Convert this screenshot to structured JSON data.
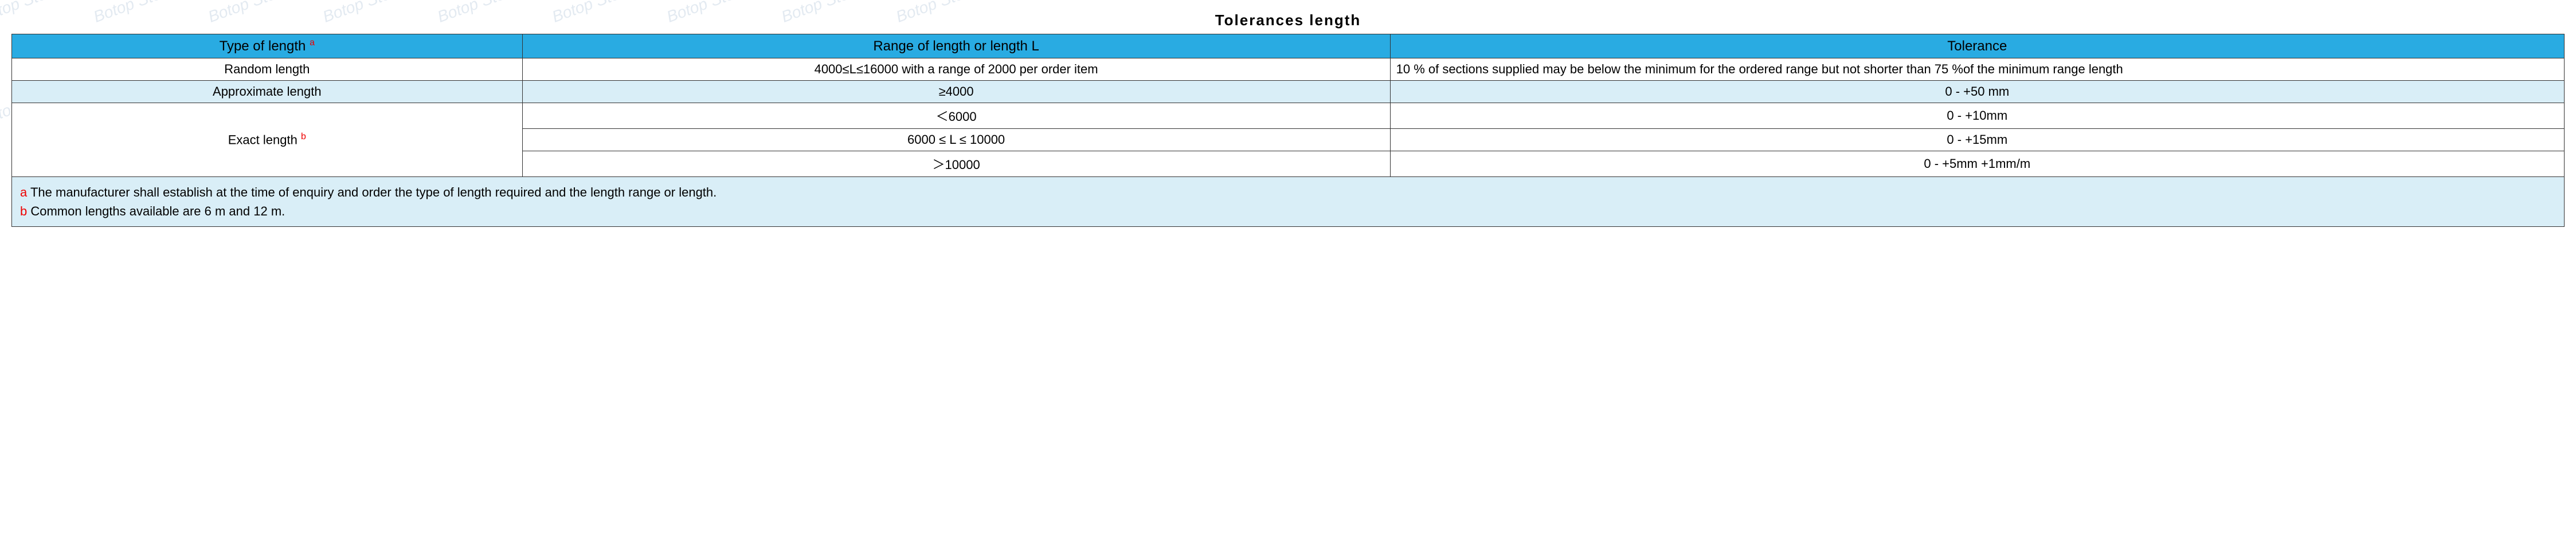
{
  "title": "Tolerances  length",
  "watermark_text": "Botop Steel",
  "header": {
    "col1": "Type of length",
    "col1_sup": "a",
    "col2": "Range of length or length L",
    "col3": "Tolerance"
  },
  "rows": {
    "random": {
      "type": "Random length",
      "range": "4000≤L≤16000 with a range of 2000 per order item",
      "tol": "10 % of sections supplied may be below the minimum for the ordered range but not shorter than 75 %of the minimum range length"
    },
    "approx": {
      "type": "Approximate length",
      "range": "≥4000",
      "tol": "0 - +50 mm"
    },
    "exact": {
      "type": "Exact length",
      "type_sup": "b",
      "r1": {
        "range": "＜6000",
        "tol": "0 - +10mm"
      },
      "r2": {
        "range": "6000 ≤ L ≤ 10000",
        "tol": "0 - +15mm"
      },
      "r3": {
        "range": "＞10000",
        "tol": "0 - +5mm +1mm/m"
      }
    }
  },
  "footnotes": {
    "a_mark": "a",
    "a_text": " The manufacturer shall establish at the time of enquiry and order the type of length required and the length range or length.",
    "b_mark": "b",
    "b_text": " Common lengths available are 6 m and 12 m."
  },
  "colors": {
    "header_bg": "#29abe2",
    "alt_bg": "#d9eef7",
    "border": "#333333",
    "sup": "#ee0000"
  }
}
